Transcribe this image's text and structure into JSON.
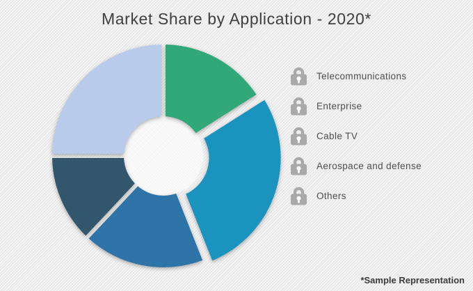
{
  "title": "Market Share by Application - 2020*",
  "footnote": "*Sample Representation",
  "legend": {
    "position": "right",
    "items": [
      {
        "icon": "lock-icon",
        "label": "Telecommunications"
      },
      {
        "icon": "lock-icon",
        "label": "Enterprise"
      },
      {
        "icon": "lock-icon",
        "label": "Cable TV"
      },
      {
        "icon": "lock-icon",
        "label": "Aerospace and defense"
      },
      {
        "icon": "lock-icon",
        "label": "Others"
      }
    ]
  },
  "colors": {
    "background": "#ededed",
    "title_text": "#3f3f3f",
    "legend_text": "#4d4d4d",
    "lock_icon": "#a9a9a9",
    "footnote_text": "#3b3b3b"
  },
  "chart_data": {
    "type": "pie",
    "subtype": "donut",
    "title": "Market Share by Application - 2020*",
    "categories": [
      "Telecommunications",
      "Enterprise",
      "Cable TV",
      "Aerospace and defense",
      "Others"
    ],
    "values": [
      16,
      28,
      18,
      13,
      25
    ],
    "values_note": "percent of circle, estimated from slice angles; actual figures locked (sample representation)",
    "colors": [
      "#31a877",
      "#1b93bf",
      "#2f74a8",
      "#32566b",
      "#b8cbeb"
    ],
    "start_angle_deg": 0,
    "clockwise": true,
    "exploded_slice": "Enterprise",
    "slice_gap": true,
    "legend_position": "right",
    "annotation": "*Sample Representation"
  }
}
